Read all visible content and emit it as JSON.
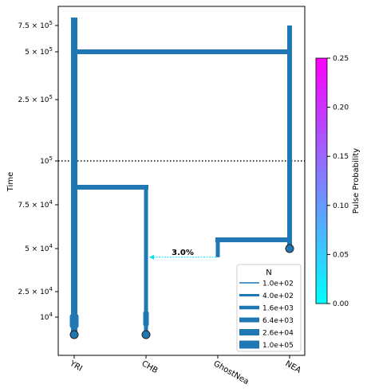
{
  "chart_data": {
    "type": "line",
    "ylabel": "Time",
    "y_scale": "custom (demes time axis)",
    "populations": [
      "YRI",
      "CHB",
      "GhostNea",
      "NEA"
    ],
    "y_ticks": [
      {
        "value": 750000,
        "label": "7.5 × 10^5",
        "mant": "7.5",
        "exp": "5"
      },
      {
        "value": 500000,
        "label": "5 × 10^5",
        "mant": "5",
        "exp": "5"
      },
      {
        "value": 250000,
        "label": "2.5 × 10^5",
        "mant": "2.5",
        "exp": "5"
      },
      {
        "value": 100000,
        "label": "10^5",
        "mant": "",
        "exp": "5"
      },
      {
        "value": 75000,
        "label": "7.5 × 10^4",
        "mant": "7.5",
        "exp": "4"
      },
      {
        "value": 50000,
        "label": "5 × 10^4",
        "mant": "5",
        "exp": "4"
      },
      {
        "value": 25000,
        "label": "2.5 × 10^4",
        "mant": "2.5",
        "exp": "4"
      },
      {
        "value": 10000,
        "label": "10^4",
        "mant": "",
        "exp": "4"
      }
    ],
    "reference_line_time": 100000,
    "lineages": [
      {
        "name": "YRI",
        "start_time": 850000,
        "end_time": 0
      },
      {
        "name": "CHB",
        "start_time": 85000,
        "end_time": 0
      },
      {
        "name": "GhostNea",
        "start_time": 55000,
        "end_time": 45000
      },
      {
        "name": "NEA",
        "start_time": 750000,
        "end_time": 50000
      }
    ],
    "branches": [
      {
        "from": "YRI",
        "to": "NEA",
        "time": 500000
      },
      {
        "from": "YRI",
        "to": "CHB",
        "time": 85000
      },
      {
        "from": "GhostNea",
        "to": "NEA",
        "time": 55000
      }
    ],
    "sample_markers": [
      {
        "pop": "YRI",
        "time": 0
      },
      {
        "pop": "CHB",
        "time": 0
      },
      {
        "pop": "NEA",
        "time": 50000
      }
    ],
    "pulses": [
      {
        "from": "GhostNea",
        "to": "CHB",
        "time": 45000,
        "proportion": 0.03,
        "label": "3.0%"
      }
    ],
    "colors": {
      "lineage": "#1f77b4",
      "pulse": "#00e0f0",
      "marker_edge": "#222222",
      "reference_line": "#000000"
    },
    "legend": {
      "title": "N",
      "position": "lower-right",
      "entries": [
        "1.0e+02",
        "4.0e+02",
        "1.6e+03",
        "6.4e+03",
        "2.6e+04",
        "1.0e+05"
      ]
    },
    "colorbar": {
      "label": "Pulse Probability",
      "min": 0,
      "max": 0.25,
      "ticks": [
        "0.00",
        "0.05",
        "0.10",
        "0.15",
        "0.20",
        "0.25"
      ],
      "colormap": [
        "#00ffff",
        "#ff00ff"
      ]
    }
  }
}
